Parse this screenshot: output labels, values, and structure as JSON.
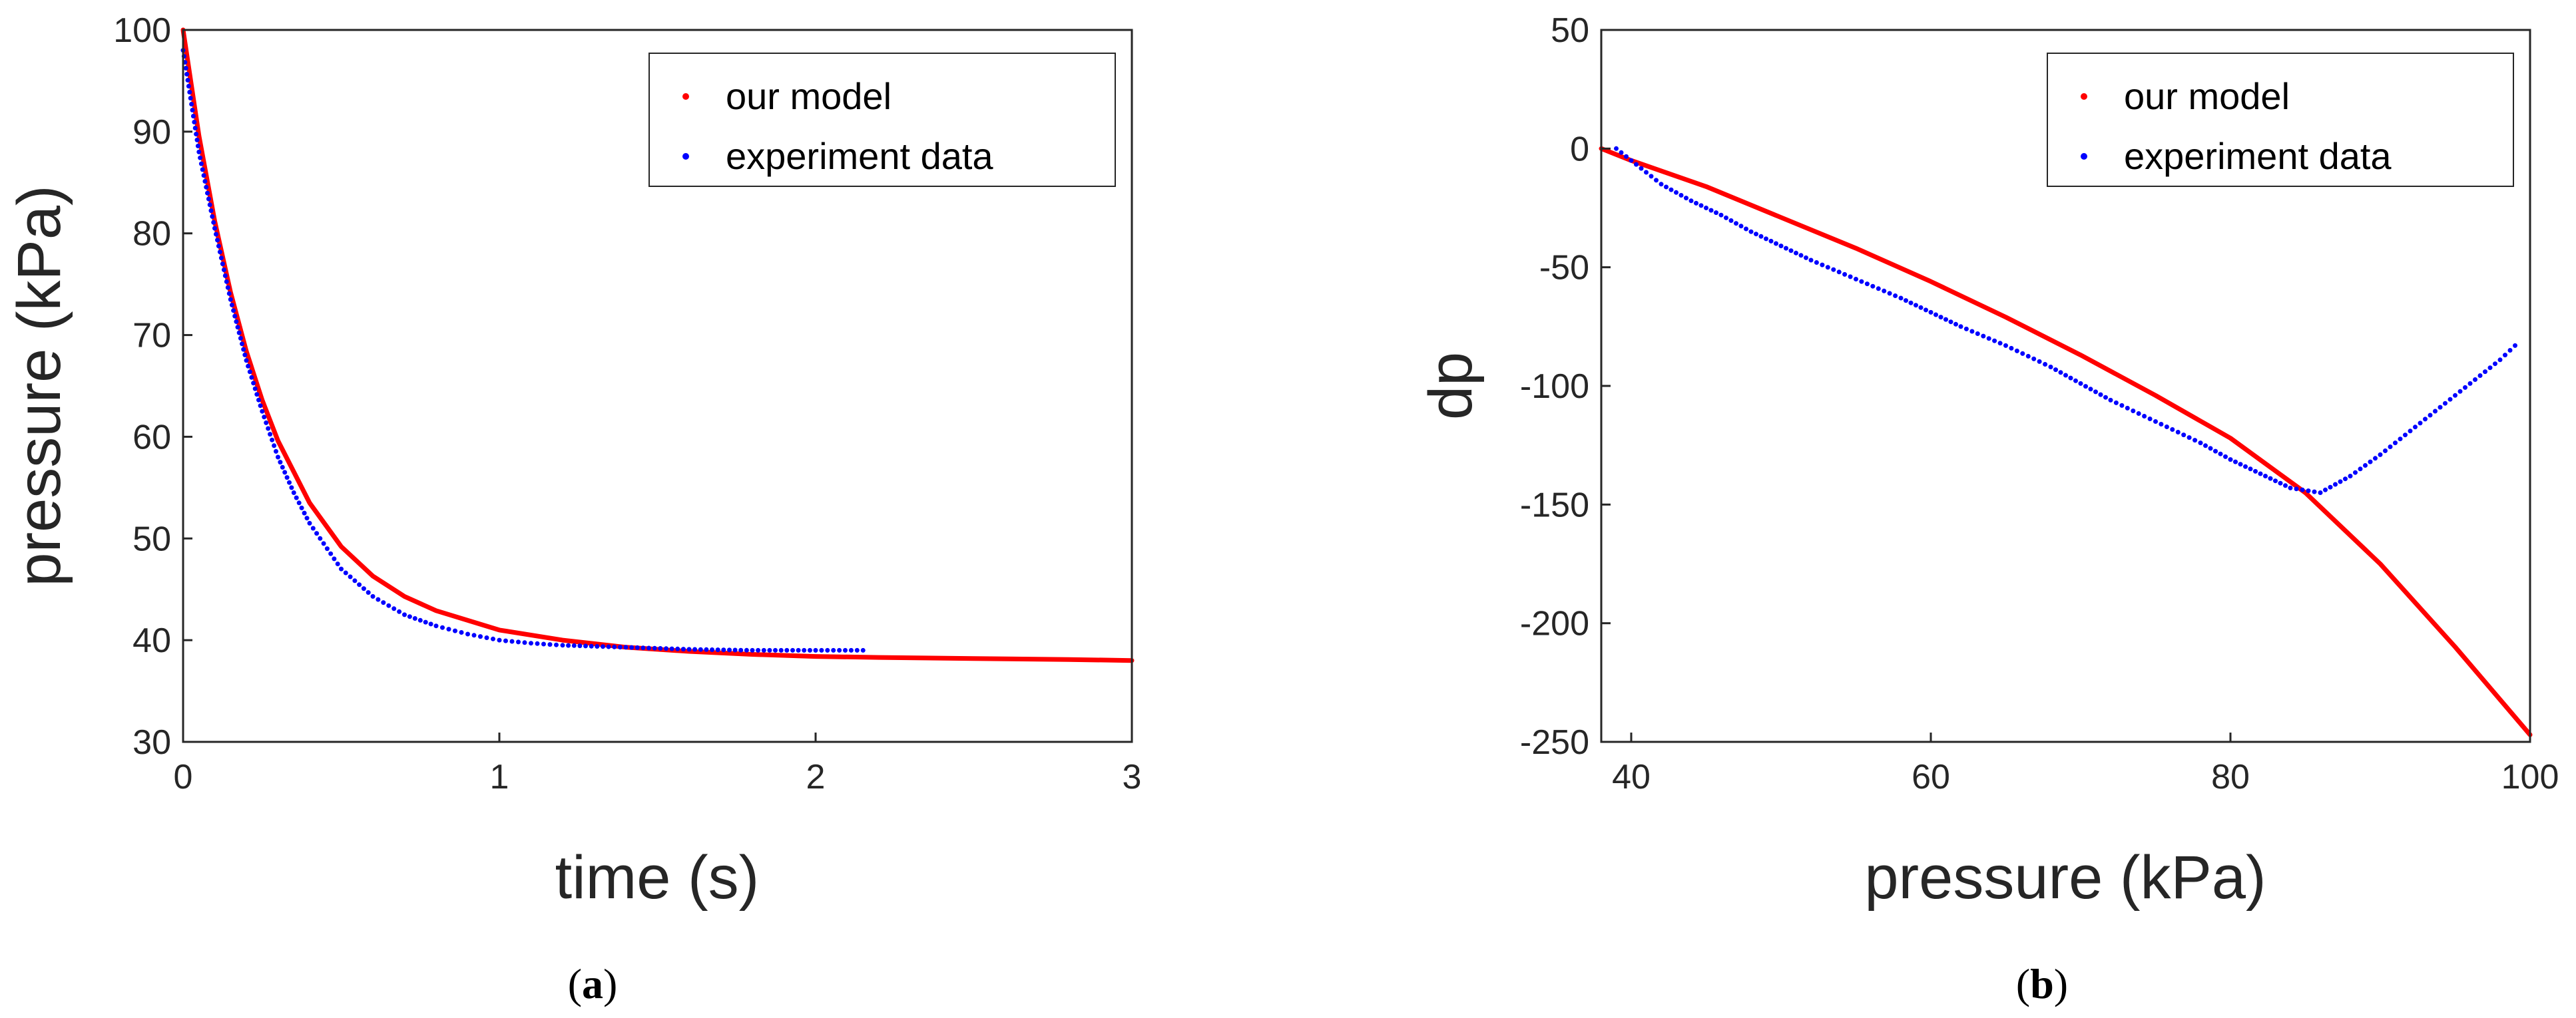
{
  "colors": {
    "model": "#ff0000",
    "experiment": "#0000ff",
    "axis": "#262626"
  },
  "chart_data": [
    {
      "type": "line",
      "caption": {
        "open": "(",
        "letter": "a",
        "close": ")"
      },
      "xlabel": "time (s)",
      "ylabel": "pressure (kPa)",
      "xlim": [
        0,
        3
      ],
      "ylim": [
        30,
        100
      ],
      "xticks": [
        "0",
        "1",
        "2",
        "3"
      ],
      "yticks": [
        "30",
        "40",
        "50",
        "60",
        "70",
        "80",
        "90",
        "100"
      ],
      "legend": {
        "position": "top-right",
        "entries": [
          "our model",
          "experiment data"
        ]
      },
      "series": [
        {
          "name": "our model",
          "style": "solid",
          "x": [
            0,
            0.05,
            0.1,
            0.15,
            0.2,
            0.25,
            0.3,
            0.4,
            0.5,
            0.6,
            0.7,
            0.8,
            1.0,
            1.2,
            1.4,
            1.6,
            1.8,
            2.0,
            2.2,
            2.5,
            2.8,
            3.0
          ],
          "y": [
            100,
            89.6,
            81.2,
            74.2,
            68.4,
            63.6,
            59.6,
            53.5,
            49.2,
            46.3,
            44.3,
            42.9,
            41.0,
            40.0,
            39.3,
            38.9,
            38.6,
            38.4,
            38.3,
            38.2,
            38.1,
            38.0
          ]
        },
        {
          "name": "experiment data",
          "style": "dotted",
          "x": [
            0,
            0.05,
            0.1,
            0.15,
            0.2,
            0.25,
            0.3,
            0.35,
            0.4,
            0.5,
            0.6,
            0.7,
            0.8,
            0.9,
            1.0,
            1.1,
            1.2,
            1.4,
            1.6,
            1.8,
            2.0,
            2.15
          ],
          "y": [
            98,
            88,
            80.5,
            73.5,
            67.5,
            62.5,
            58.0,
            54.5,
            51.5,
            47.0,
            44.3,
            42.5,
            41.4,
            40.6,
            40.0,
            39.7,
            39.5,
            39.3,
            39.1,
            39.0,
            39.0,
            39.0
          ]
        }
      ]
    },
    {
      "type": "line",
      "caption": {
        "open": "(",
        "letter": "b",
        "close": ")"
      },
      "xlabel": "pressure (kPa)",
      "ylabel": "dp",
      "xlim": [
        38,
        100
      ],
      "ylim": [
        -250,
        50
      ],
      "xticks": [
        "40",
        "60",
        "80",
        "100"
      ],
      "yticks": [
        "-250",
        "-200",
        "-150",
        "-100",
        "-50",
        "0",
        "50"
      ],
      "legend": {
        "position": "top-right",
        "entries": [
          "our model",
          "experiment data"
        ]
      },
      "series": [
        {
          "name": "our model",
          "style": "solid",
          "x": [
            38,
            40,
            45,
            50,
            55,
            60,
            65,
            70,
            75,
            80,
            85,
            90,
            95,
            100
          ],
          "y": [
            0,
            -5,
            -16,
            -29,
            -42,
            -56,
            -71,
            -87,
            -104,
            -122,
            -145,
            -175,
            -210,
            -247
          ]
        },
        {
          "name": "experiment data",
          "style": "dotted",
          "x": [
            39,
            40,
            41,
            42,
            44,
            46,
            48,
            50,
            52,
            55,
            58,
            60,
            62,
            65,
            68,
            70,
            72,
            75,
            78,
            80,
            82,
            84,
            86,
            88,
            90,
            92,
            94,
            96,
            98,
            99
          ],
          "y": [
            0,
            -5,
            -10,
            -15,
            -22,
            -28,
            -35,
            -41,
            -47,
            -55,
            -63,
            -69,
            -75,
            -83,
            -92,
            -99,
            -106,
            -115,
            -124,
            -131,
            -137,
            -143,
            -145,
            -138,
            -129,
            -119,
            -109,
            -99,
            -89,
            -83
          ]
        }
      ]
    }
  ]
}
